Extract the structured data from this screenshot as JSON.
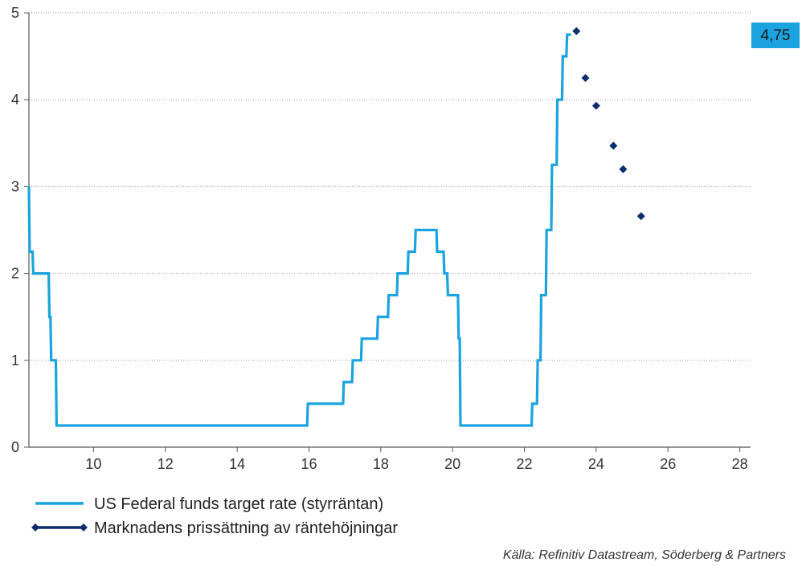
{
  "chart_data": {
    "type": "line",
    "title": "",
    "xlabel": "",
    "ylabel": "",
    "xlim": [
      8.2,
      28.3
    ],
    "ylim": [
      0,
      5
    ],
    "x_ticks": [
      10,
      12,
      14,
      16,
      18,
      20,
      22,
      24,
      26,
      28
    ],
    "y_ticks": [
      0,
      1,
      2,
      3,
      4,
      5
    ],
    "grid": "horizontal-dotted",
    "legend_position": "bottom",
    "series": [
      {
        "name": "US Federal funds target rate (styrräntan)",
        "color": "#1aa3df",
        "style": "step",
        "points": [
          [
            8.2,
            3.0
          ],
          [
            8.22,
            2.25
          ],
          [
            8.3,
            2.25
          ],
          [
            8.32,
            2.0
          ],
          [
            8.75,
            2.0
          ],
          [
            8.77,
            1.5
          ],
          [
            8.8,
            1.5
          ],
          [
            8.82,
            1.0
          ],
          [
            8.95,
            1.0
          ],
          [
            8.97,
            0.25
          ],
          [
            15.95,
            0.25
          ],
          [
            15.97,
            0.5
          ],
          [
            16.95,
            0.5
          ],
          [
            16.97,
            0.75
          ],
          [
            17.2,
            0.75
          ],
          [
            17.22,
            1.0
          ],
          [
            17.45,
            1.0
          ],
          [
            17.47,
            1.25
          ],
          [
            17.9,
            1.25
          ],
          [
            17.92,
            1.5
          ],
          [
            18.2,
            1.5
          ],
          [
            18.22,
            1.75
          ],
          [
            18.45,
            1.75
          ],
          [
            18.47,
            2.0
          ],
          [
            18.75,
            2.0
          ],
          [
            18.77,
            2.25
          ],
          [
            18.95,
            2.25
          ],
          [
            18.97,
            2.5
          ],
          [
            19.55,
            2.5
          ],
          [
            19.57,
            2.25
          ],
          [
            19.75,
            2.25
          ],
          [
            19.77,
            2.0
          ],
          [
            19.85,
            2.0
          ],
          [
            19.87,
            1.75
          ],
          [
            20.15,
            1.75
          ],
          [
            20.17,
            1.25
          ],
          [
            20.2,
            1.25
          ],
          [
            20.22,
            0.25
          ],
          [
            22.2,
            0.25
          ],
          [
            22.22,
            0.5
          ],
          [
            22.35,
            0.5
          ],
          [
            22.37,
            1.0
          ],
          [
            22.45,
            1.0
          ],
          [
            22.47,
            1.75
          ],
          [
            22.6,
            1.75
          ],
          [
            22.62,
            2.5
          ],
          [
            22.75,
            2.5
          ],
          [
            22.77,
            3.25
          ],
          [
            22.9,
            3.25
          ],
          [
            22.92,
            4.0
          ],
          [
            23.05,
            4.0
          ],
          [
            23.07,
            4.5
          ],
          [
            23.17,
            4.5
          ],
          [
            23.19,
            4.75
          ],
          [
            23.3,
            4.75
          ]
        ]
      },
      {
        "name": "Marknadens prissättning av räntehöjningar",
        "color": "#0d2d6e",
        "style": "markers",
        "points": [
          [
            23.45,
            4.79
          ],
          [
            23.7,
            4.25
          ],
          [
            24.0,
            3.93
          ],
          [
            24.48,
            3.47
          ],
          [
            24.75,
            3.2
          ],
          [
            25.25,
            2.66
          ]
        ]
      }
    ],
    "annotations": [
      {
        "text": "4,75",
        "value": 4.75,
        "color": "#1aa3df"
      }
    ]
  },
  "source_note": "Källa: Refinitiv Datastream, Söderberg & Partners"
}
